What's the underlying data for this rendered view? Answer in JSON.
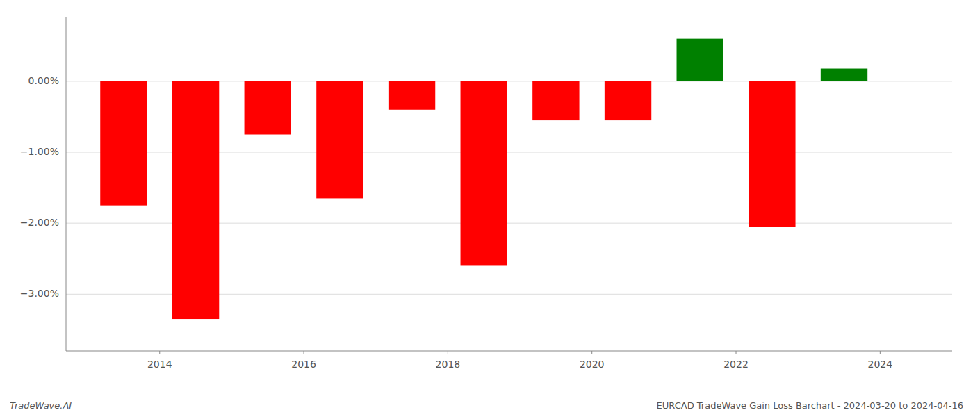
{
  "chart_data": {
    "type": "bar",
    "x": [
      2013,
      2014,
      2015,
      2016,
      2017,
      2018,
      2019,
      2020,
      2021,
      2022,
      2023,
      2024
    ],
    "values": [
      -1.75,
      -3.35,
      -0.75,
      -1.65,
      -0.4,
      -2.6,
      -0.55,
      -0.55,
      0.6,
      -2.05,
      0.18,
      0.0
    ],
    "colors": [
      "red",
      "red",
      "red",
      "red",
      "red",
      "red",
      "red",
      "red",
      "green",
      "red",
      "green",
      "red"
    ],
    "xlim": [
      2012.2,
      2024.5
    ],
    "xticks": [
      {
        "value": 2013.5,
        "label": "2014"
      },
      {
        "value": 2015.5,
        "label": "2016"
      },
      {
        "value": 2017.5,
        "label": "2018"
      },
      {
        "value": 2019.5,
        "label": "2020"
      },
      {
        "value": 2021.5,
        "label": "2022"
      },
      {
        "value": 2023.5,
        "label": "2024"
      }
    ],
    "ylim": [
      -3.8,
      0.9
    ],
    "yticks": [
      {
        "value": -3.0,
        "label": "−3.00%"
      },
      {
        "value": -2.0,
        "label": "−2.00%"
      },
      {
        "value": -1.0,
        "label": "−1.00%"
      },
      {
        "value": 0.0,
        "label": "0.00%"
      }
    ],
    "grid": true,
    "annotations": [
      "TradeWave.AI",
      "EURCAD TradeWave Gain Loss Barchart - 2024-03-20 to 2024-04-16"
    ]
  }
}
